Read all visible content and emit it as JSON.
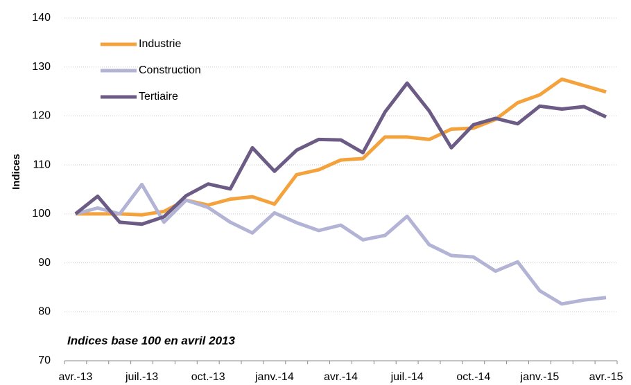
{
  "chart_data": {
    "type": "line",
    "y_label": "Indices",
    "annotation": "Indices base 100 en avril 2013",
    "categories": [
      "avr.-13",
      null,
      null,
      "juil.-13",
      null,
      null,
      "oct.-13",
      null,
      null,
      "janv.-14",
      null,
      null,
      "avr.-14",
      null,
      null,
      "juil.-14",
      null,
      null,
      "oct.-14",
      null,
      null,
      "janv.-15",
      null,
      null,
      "avr.-15"
    ],
    "series": [
      {
        "name": "Industrie",
        "color": "#f4a23c",
        "values": [
          100,
          100,
          100,
          99.8,
          100.5,
          102.8,
          101.8,
          103,
          103.5,
          102,
          108,
          109,
          111,
          111.3,
          115.7,
          115.7,
          115.2,
          117.3,
          117.5,
          119.3,
          122.7,
          124.3,
          127.5,
          126.2,
          124.9
        ]
      },
      {
        "name": "Construction",
        "color": "#b3b3d6",
        "values": [
          100,
          101.2,
          100,
          106,
          98.3,
          102.8,
          101.3,
          98.3,
          96.1,
          100.2,
          98.2,
          96.6,
          97.7,
          94.7,
          95.6,
          99.5,
          93.7,
          91.5,
          91.2,
          88.3,
          90.2,
          84.3,
          81.6,
          82.4,
          82.9
        ]
      },
      {
        "name": "Tertiaire",
        "color": "#6b5b85",
        "values": [
          100,
          103.6,
          98.3,
          97.9,
          99.4,
          103.7,
          106.1,
          105.1,
          113.5,
          108.7,
          113,
          115.2,
          115.1,
          112.5,
          120.8,
          126.7,
          121,
          113.5,
          118.2,
          119.5,
          118.4,
          122,
          121.4,
          121.9,
          119.8
        ]
      }
    ],
    "ylim": [
      70,
      140
    ],
    "yticks": [
      70,
      80,
      90,
      100,
      110,
      120,
      130,
      140
    ],
    "grid": true
  }
}
